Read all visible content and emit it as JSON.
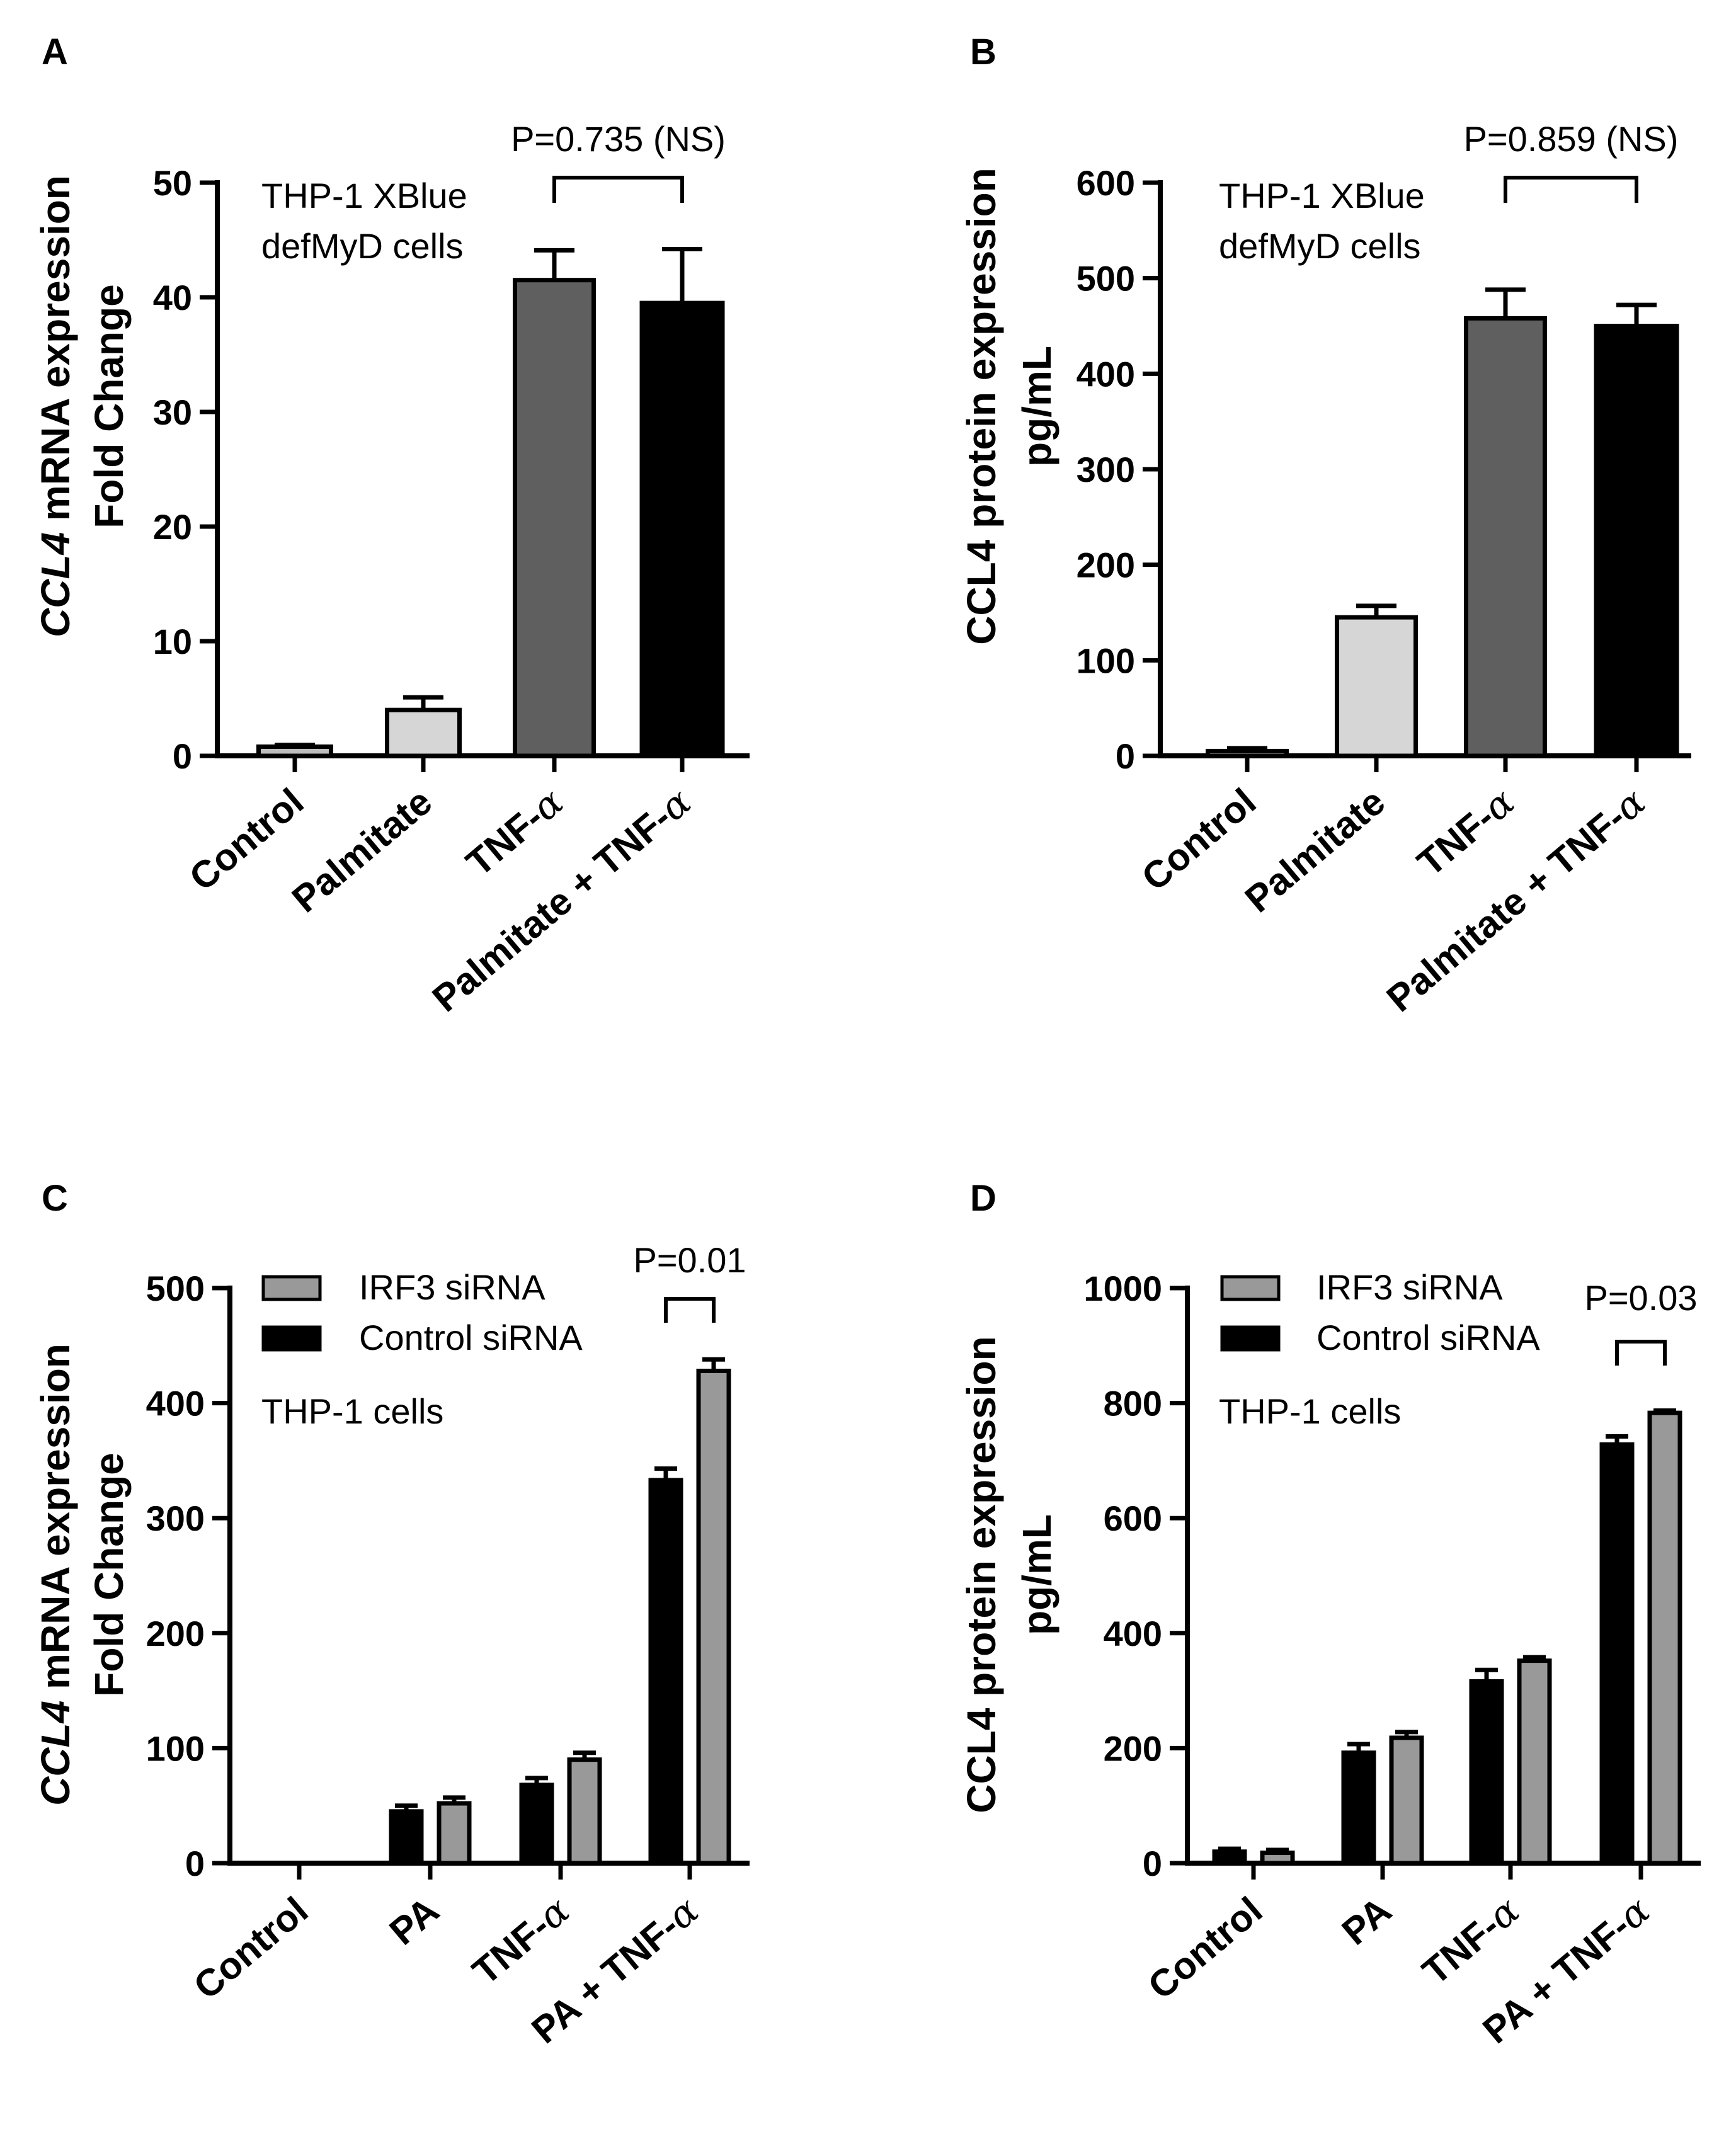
{
  "chart_data": [
    {
      "type": "bar",
      "panel": "A",
      "ylabel_italic": "CCL4",
      "ylabel_rest": " mRNA expression",
      "ylabel_line2": "Fold Change",
      "ylim": [
        0,
        50
      ],
      "yticks": [
        "0",
        "10",
        "20",
        "30",
        "40",
        "50"
      ],
      "categories": [
        "Control",
        "Palmitate",
        "TNF-α",
        "Palmitate + TNF-α"
      ],
      "series": [
        {
          "name": "",
          "values": [
            0.8,
            4.0,
            41.5,
            39.5
          ],
          "errors": [
            0.15,
            1.1,
            2.6,
            4.7
          ],
          "colors": [
            "#bdbdbd",
            "#d6d6d6",
            "#5f5f5f",
            "#000000"
          ]
        }
      ],
      "annotation": [
        "THP-1 XBlue",
        "defMyD cells"
      ],
      "comparison": {
        "label": "P=0.735 (NS)",
        "between": [
          2,
          3
        ]
      }
    },
    {
      "type": "bar",
      "panel": "B",
      "ylabel_italic": "",
      "ylabel_rest": "CCL4 protein expression",
      "ylabel_line2": "pg/mL",
      "ylim": [
        0,
        600
      ],
      "yticks": [
        "0",
        "100",
        "200",
        "300",
        "400",
        "500",
        "600"
      ],
      "categories": [
        "Control",
        "Palmitate",
        "TNF-α",
        "Palmitate + TNF-α"
      ],
      "series": [
        {
          "name": "",
          "values": [
            5,
            145,
            458,
            450
          ],
          "errors": [
            3,
            12,
            30,
            22
          ],
          "colors": [
            "#bdbdbd",
            "#d6d6d6",
            "#5f5f5f",
            "#000000"
          ]
        }
      ],
      "annotation": [
        "THP-1 XBlue",
        "defMyD cells"
      ],
      "comparison": {
        "label": "P=0.859 (NS)",
        "between": [
          2,
          3
        ]
      }
    },
    {
      "type": "bar",
      "panel": "C",
      "ylabel_italic": "CCL4",
      "ylabel_rest": " mRNA expression",
      "ylabel_line2": "Fold Change",
      "ylim": [
        0,
        500
      ],
      "yticks": [
        "0",
        "100",
        "200",
        "300",
        "400",
        "500"
      ],
      "categories": [
        "Control",
        "PA",
        "TNF-α",
        "PA + TNF-α"
      ],
      "series": [
        {
          "name": "Control siRNA",
          "values": [
            0,
            45,
            68,
            333
          ],
          "errors": [
            0,
            5,
            6,
            10
          ],
          "color": "#000000"
        },
        {
          "name": "IRF3 siRNA",
          "values": [
            0,
            52,
            90,
            428
          ],
          "errors": [
            0,
            5,
            6,
            10
          ],
          "color": "#999999"
        }
      ],
      "legend_order": [
        "IRF3 siRNA",
        "Control siRNA"
      ],
      "annotation": [
        "THP-1 cells"
      ],
      "comparison": {
        "label": "P=0.01",
        "between": [
          3,
          3
        ]
      }
    },
    {
      "type": "bar",
      "panel": "D",
      "ylabel_italic": "",
      "ylabel_rest": "CCL4 protein expression",
      "ylabel_line2": "pg/mL",
      "ylim": [
        0,
        1000
      ],
      "yticks": [
        "0",
        "200",
        "400",
        "600",
        "800",
        "1000"
      ],
      "categories": [
        "Control",
        "PA",
        "TNF-α",
        "PA + TNF-α"
      ],
      "series": [
        {
          "name": "Control siRNA",
          "values": [
            20,
            192,
            316,
            728
          ],
          "errors": [
            5,
            15,
            20,
            14
          ],
          "color": "#000000"
        },
        {
          "name": "IRF3 siRNA",
          "values": [
            18,
            218,
            352,
            783
          ],
          "errors": [
            5,
            10,
            6,
            4
          ],
          "color": "#999999"
        }
      ],
      "legend_order": [
        "IRF3 siRNA",
        "Control siRNA"
      ],
      "annotation": [
        "THP-1 cells"
      ],
      "comparison": {
        "label": "P=0.03",
        "between": [
          3,
          3
        ]
      }
    }
  ]
}
